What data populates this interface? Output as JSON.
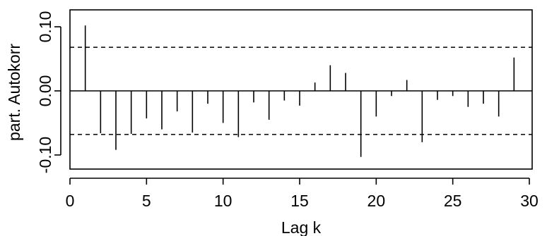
{
  "chart_data": {
    "type": "bar",
    "subtype": "partial-autocorrelation",
    "title": "",
    "xlabel": "Lag k",
    "ylabel": "part. Autokorr",
    "xlim": [
      0,
      30
    ],
    "ylim": [
      -0.12,
      0.12
    ],
    "x_ticks": [
      0,
      5,
      10,
      15,
      20,
      25,
      30
    ],
    "x_tick_labels": [
      "0",
      "5",
      "10",
      "15",
      "20",
      "25",
      "30"
    ],
    "y_ticks": [
      -0.1,
      0.0,
      0.1
    ],
    "y_tick_labels": [
      "-0.10",
      "0.00",
      "0.10"
    ],
    "grid": false,
    "legend": "none",
    "confidence_band": 0.068,
    "x": [
      1,
      2,
      3,
      4,
      5,
      6,
      7,
      8,
      9,
      10,
      11,
      12,
      13,
      14,
      15,
      16,
      17,
      18,
      19,
      20,
      21,
      22,
      23,
      24,
      25,
      26,
      27,
      28,
      29
    ],
    "values": [
      0.102,
      -0.066,
      -0.092,
      -0.067,
      -0.043,
      -0.06,
      -0.032,
      -0.065,
      -0.02,
      -0.05,
      -0.072,
      -0.018,
      -0.045,
      -0.015,
      -0.023,
      0.013,
      0.04,
      0.028,
      -0.103,
      -0.04,
      -0.008,
      0.017,
      -0.08,
      -0.014,
      -0.008,
      -0.025,
      -0.02,
      -0.04,
      0.052
    ]
  }
}
